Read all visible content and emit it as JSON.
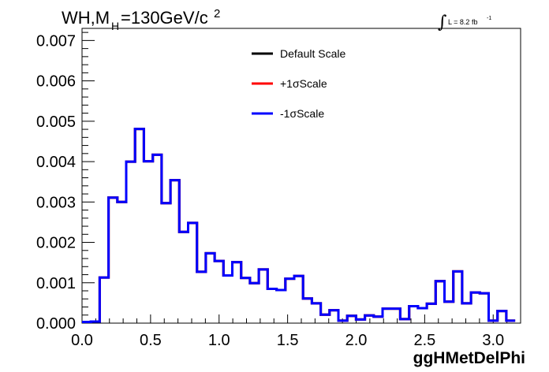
{
  "chart_data": {
    "type": "line",
    "title": {
      "prefix": "WH,M",
      "subscript": "H",
      "value": "=130GeV/c",
      "superscript": "2"
    },
    "luminosity": {
      "integral": "∫",
      "text": "L = 8.2 fb",
      "superscript": "-1"
    },
    "xlabel": "ggHMetDelPhi",
    "ylabel": "",
    "xlim": [
      0.0,
      3.2
    ],
    "ylim": [
      0.0,
      0.0073
    ],
    "xticks": [
      {
        "value": 0.0,
        "label": "0.0"
      },
      {
        "value": 0.5,
        "label": "0.5"
      },
      {
        "value": 1.0,
        "label": "1.0"
      },
      {
        "value": 1.5,
        "label": "1.5"
      },
      {
        "value": 2.0,
        "label": "2.0"
      },
      {
        "value": 2.5,
        "label": "2.5"
      },
      {
        "value": 3.0,
        "label": "3.0"
      }
    ],
    "yticks": [
      {
        "value": 0.0,
        "label": "0.000"
      },
      {
        "value": 0.001,
        "label": "0.001"
      },
      {
        "value": 0.002,
        "label": "0.002"
      },
      {
        "value": 0.003,
        "label": "0.003"
      },
      {
        "value": 0.004,
        "label": "0.004"
      },
      {
        "value": 0.005,
        "label": "0.005"
      },
      {
        "value": 0.006,
        "label": "0.006"
      },
      {
        "value": 0.007,
        "label": "0.007"
      }
    ],
    "bin_width": 0.0645,
    "bin_start": 0.0,
    "legend_placement": "top-center",
    "series": [
      {
        "name": "Default Scale",
        "color": "#000000",
        "values": [
          3e-05,
          4e-05,
          0.00113,
          0.00311,
          0.003,
          0.004,
          0.00481,
          0.00401,
          0.00417,
          0.00297,
          0.00354,
          0.00226,
          0.00248,
          0.00127,
          0.00173,
          0.00154,
          0.00118,
          0.00151,
          0.00112,
          0.00099,
          0.00133,
          0.00085,
          0.00082,
          0.0011,
          0.00117,
          0.00061,
          0.00049,
          0.00021,
          0.00032,
          6e-05,
          0.00018,
          9e-05,
          0.00019,
          0.00016,
          0.00036,
          0.00036,
          0.0001,
          0.00042,
          0.00037,
          0.00048,
          0.00104,
          0.00053,
          0.00128,
          0.00049,
          0.00076,
          0.00074,
          6e-05,
          0.0003,
          6e-05
        ]
      },
      {
        "name": "+1σScale",
        "color": "#ff0000",
        "values": [
          3e-05,
          4e-05,
          0.00113,
          0.00311,
          0.003,
          0.004,
          0.00481,
          0.00401,
          0.00417,
          0.00297,
          0.00354,
          0.00226,
          0.00248,
          0.00127,
          0.00173,
          0.00154,
          0.00118,
          0.00151,
          0.00112,
          0.00099,
          0.00133,
          0.00085,
          0.00082,
          0.0011,
          0.00117,
          0.00061,
          0.00049,
          0.00021,
          0.00032,
          6e-05,
          0.00018,
          9e-05,
          0.00019,
          0.00016,
          0.00036,
          0.00036,
          0.0001,
          0.00042,
          0.00037,
          0.00048,
          0.00104,
          0.00053,
          0.00128,
          0.00049,
          0.00076,
          0.00074,
          6e-05,
          0.0003,
          6e-05
        ]
      },
      {
        "name": "-1σScale",
        "color": "#0000ff",
        "values": [
          3e-05,
          4e-05,
          0.00113,
          0.00311,
          0.003,
          0.004,
          0.00481,
          0.00401,
          0.00417,
          0.00297,
          0.00354,
          0.00226,
          0.00248,
          0.00127,
          0.00173,
          0.00154,
          0.00118,
          0.00151,
          0.00112,
          0.00099,
          0.00133,
          0.00085,
          0.00082,
          0.0011,
          0.00117,
          0.00061,
          0.00049,
          0.00021,
          0.00032,
          6e-05,
          0.00018,
          9e-05,
          0.00019,
          0.00016,
          0.00036,
          0.00036,
          0.0001,
          0.00042,
          0.00037,
          0.00048,
          0.00104,
          0.00053,
          0.00128,
          0.00049,
          0.00076,
          0.00074,
          6e-05,
          0.0003,
          6e-05
        ]
      }
    ],
    "grid": false
  }
}
